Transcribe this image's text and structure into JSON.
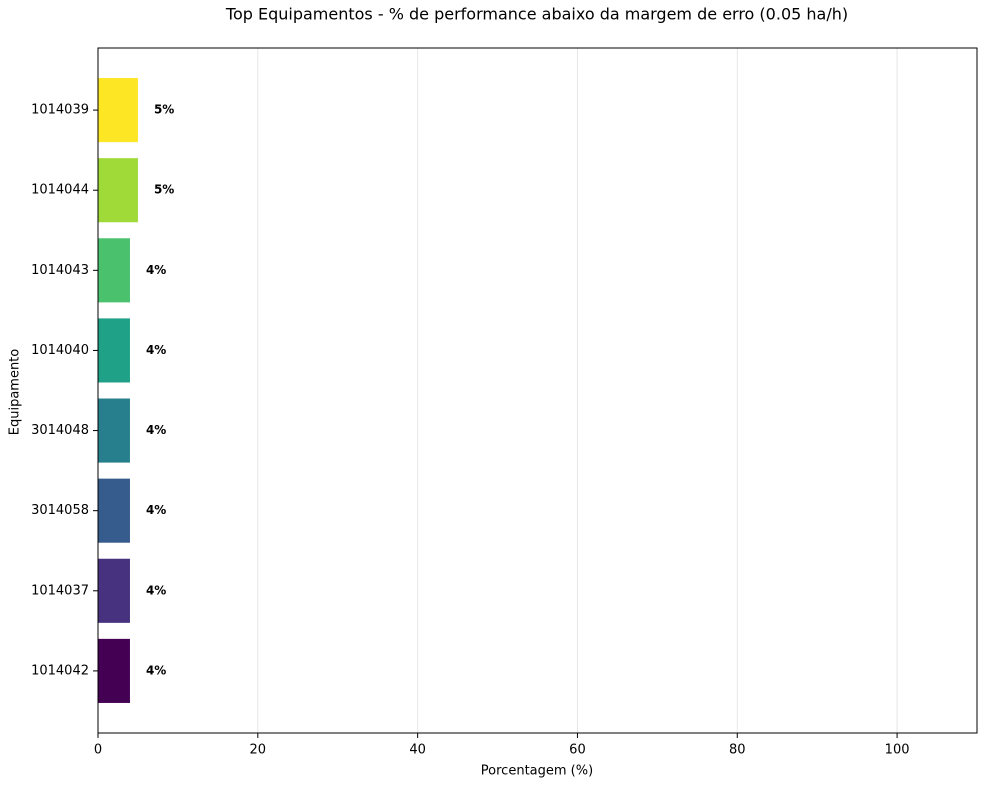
{
  "chart_data": {
    "type": "barh",
    "title": "Top Equipamentos - % de performance abaixo da margem de erro (0.05 ha/h)",
    "x_label": "Porcentagem (%)",
    "y_label": "Equipamento",
    "categories": [
      "1014039",
      "1014044",
      "1014043",
      "1014040",
      "3014048",
      "3014058",
      "1014037",
      "1014042"
    ],
    "values": [
      5,
      5,
      4,
      4,
      4,
      4,
      4,
      4
    ],
    "value_labels": [
      "5%",
      "5%",
      "4%",
      "4%",
      "4%",
      "4%",
      "4%",
      "4%"
    ],
    "colors": [
      "#fde725",
      "#a0da39",
      "#4ac16d",
      "#1fa187",
      "#277f8e",
      "#365c8d",
      "#46327e",
      "#440154"
    ],
    "xlim": [
      0,
      110
    ],
    "xticks": [
      0,
      20,
      40,
      60,
      80,
      100
    ],
    "grid": true
  }
}
